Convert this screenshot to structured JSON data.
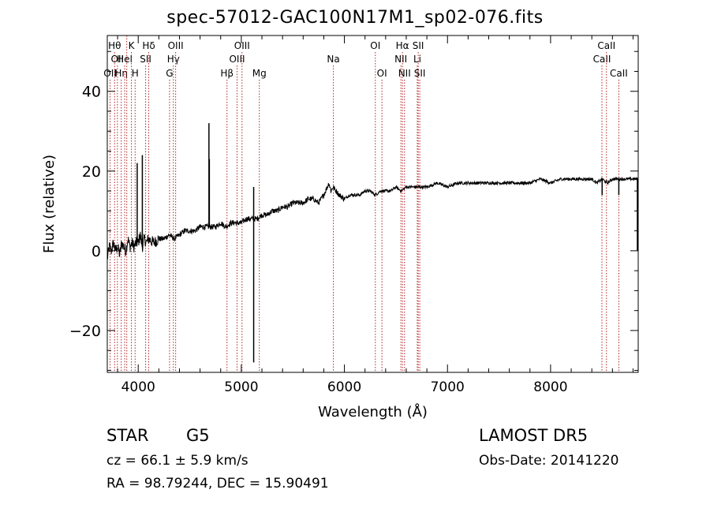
{
  "chart_data": {
    "type": "line",
    "title": "spec-57012-GAC100N17M1_sp02-076.fits",
    "xlabel": "Wavelength (Å)",
    "ylabel": "Flux (relative)",
    "xlim": [
      3700,
      8850
    ],
    "ylim": [
      -30.5,
      54
    ],
    "x_ticks": [
      4000,
      5000,
      6000,
      7000,
      8000
    ],
    "x_tick_labels": [
      "4000",
      "5000",
      "6000",
      "7000",
      "8000"
    ],
    "y_ticks": [
      -20,
      0,
      20,
      40
    ],
    "y_tick_labels": [
      "−20",
      "0",
      "20",
      "40"
    ],
    "grid": false,
    "series": [
      {
        "x": [
          3700,
          3720,
          3740,
          3760,
          3780,
          3800,
          3820,
          3840,
          3860,
          3880,
          3900,
          3920,
          3940,
          3960,
          3980,
          4000,
          4020,
          4040,
          4060,
          4080,
          4100,
          4150,
          4200,
          4250,
          4300,
          4350,
          4400,
          4450,
          4500,
          4550,
          4600,
          4650,
          4700,
          4750,
          4800,
          4850,
          4900,
          4950,
          5000,
          5050,
          5100,
          5150,
          5200,
          5250,
          5300,
          5350,
          5400,
          5450,
          5500,
          5550,
          5600,
          5650,
          5700,
          5750,
          5800,
          5850,
          5870,
          5890,
          5920,
          5950,
          6000,
          6050,
          6100,
          6150,
          6200,
          6250,
          6300,
          6350,
          6400,
          6450,
          6500,
          6550,
          6600,
          6650,
          6700,
          6750,
          6800,
          6900,
          7000,
          7100,
          7200,
          7300,
          7400,
          7500,
          7600,
          7700,
          7800,
          7900,
          8000,
          8100,
          8200,
          8300,
          8400,
          8450,
          8500,
          8550,
          8600,
          8650,
          8700,
          8750,
          8800,
          8820,
          8840,
          8850
        ],
        "y": [
          -2,
          1,
          0,
          2,
          0,
          1,
          -1,
          2,
          1,
          0,
          3,
          1,
          2,
          1,
          2,
          2,
          4,
          1,
          3,
          2,
          3,
          2,
          3,
          3,
          4,
          3,
          4,
          5,
          5,
          5,
          6,
          6,
          6,
          6,
          7,
          6,
          7,
          7,
          7,
          8,
          8,
          8,
          9,
          9,
          10,
          10,
          11,
          11,
          12,
          12,
          12,
          13,
          13,
          12,
          14,
          17,
          15,
          16,
          15,
          14,
          13,
          14,
          14,
          14,
          15,
          15,
          14,
          15,
          15,
          15,
          16,
          15,
          16,
          16,
          16,
          16,
          16,
          17,
          16,
          17,
          17,
          17,
          17,
          17,
          17,
          17,
          17,
          18,
          17,
          18,
          18,
          18,
          18,
          17,
          18,
          17,
          18,
          18,
          18,
          18,
          18,
          18,
          18,
          18
        ]
      }
    ],
    "spikes": [
      {
        "x": 3990,
        "y": 22
      },
      {
        "x": 4040,
        "y": 24
      },
      {
        "x": 4686,
        "y": 32
      },
      {
        "x": 4690,
        "y": 23
      },
      {
        "x": 5120,
        "y": 16
      },
      {
        "x": 5120,
        "y": -28
      },
      {
        "x": 8500,
        "y": 14
      },
      {
        "x": 8662,
        "y": 14
      },
      {
        "x": 8842,
        "y": 0
      }
    ],
    "line_markers": [
      {
        "x": 3727,
        "labels": [
          {
            "text": "OII",
            "row": 3
          }
        ]
      },
      {
        "x": 3771,
        "labels": [
          {
            "text": "Hθ",
            "row": 1
          }
        ]
      },
      {
        "x": 3798,
        "labels": [
          {
            "text": "OII",
            "row": 2
          }
        ]
      },
      {
        "x": 3835,
        "labels": [
          {
            "text": "Hη",
            "row": 3
          }
        ]
      },
      {
        "x": 3869,
        "labels": [
          {
            "text": "HeI",
            "row": 2
          }
        ]
      },
      {
        "x": 3889,
        "labels": []
      },
      {
        "x": 3934,
        "labels": [
          {
            "text": "K",
            "row": 1
          }
        ]
      },
      {
        "x": 3970,
        "labels": [
          {
            "text": "H",
            "row": 3
          }
        ]
      },
      {
        "x": 4072,
        "labels": [
          {
            "text": "SII",
            "row": 2
          }
        ]
      },
      {
        "x": 4102,
        "labels": [
          {
            "text": "Hδ",
            "row": 1
          }
        ]
      },
      {
        "x": 4304,
        "labels": [
          {
            "text": "G",
            "row": 3
          }
        ]
      },
      {
        "x": 4341,
        "labels": [
          {
            "text": "Hγ",
            "row": 2
          }
        ]
      },
      {
        "x": 4363,
        "labels": [
          {
            "text": "OIII",
            "row": 1
          }
        ]
      },
      {
        "x": 4861,
        "labels": [
          {
            "text": "Hβ",
            "row": 3
          }
        ]
      },
      {
        "x": 4959,
        "labels": [
          {
            "text": "OIII",
            "row": 2
          }
        ]
      },
      {
        "x": 5007,
        "labels": [
          {
            "text": "OIII",
            "row": 1
          }
        ]
      },
      {
        "x": 5175,
        "labels": [
          {
            "text": "Mg",
            "row": 3
          }
        ]
      },
      {
        "x": 5893,
        "labels": [
          {
            "text": "Na",
            "row": 2
          }
        ]
      },
      {
        "x": 6300,
        "labels": [
          {
            "text": "OI",
            "row": 1
          }
        ]
      },
      {
        "x": 6364,
        "labels": [
          {
            "text": "OI",
            "row": 3
          }
        ]
      },
      {
        "x": 6548,
        "labels": [
          {
            "text": "NII",
            "row": 2
          }
        ]
      },
      {
        "x": 6563,
        "labels": [
          {
            "text": "Hα",
            "row": 1
          }
        ]
      },
      {
        "x": 6583,
        "labels": [
          {
            "text": "NII",
            "row": 3
          }
        ]
      },
      {
        "x": 6707,
        "labels": [
          {
            "text": "Li",
            "row": 2
          }
        ]
      },
      {
        "x": 6716,
        "labels": [
          {
            "text": "SII",
            "row": 1
          }
        ]
      },
      {
        "x": 6731,
        "labels": [
          {
            "text": "SII",
            "row": 3
          }
        ]
      },
      {
        "x": 8498,
        "labels": [
          {
            "text": "CaII",
            "row": 2
          }
        ]
      },
      {
        "x": 8542,
        "labels": [
          {
            "text": "CaII",
            "row": 1
          }
        ]
      },
      {
        "x": 8662,
        "labels": [
          {
            "text": "CaII",
            "row": 3
          }
        ]
      }
    ],
    "colors": {
      "spectrum": "#000000",
      "marker_line": "#b22222",
      "axes": "#000000"
    }
  },
  "info": {
    "object_class": "STAR",
    "subclass": "G5",
    "survey": "LAMOST DR5",
    "cz": "cz = 66.1 ± 5.9 km/s",
    "obs_date": "Obs-Date: 20141220",
    "radec": "RA =  98.79244, DEC =  15.90491"
  }
}
